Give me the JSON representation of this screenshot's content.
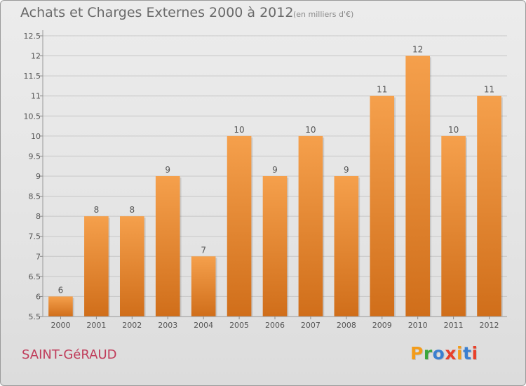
{
  "header": {
    "title": "Achats et Charges Externes 2000 à 2012",
    "subtitle": "(en milliers d'€)"
  },
  "footer": {
    "location": "SAINT-GéRAUD",
    "brand": "Proxiti",
    "brand_colors": [
      "#f39c1a",
      "#3aa63d",
      "#3a7fd0",
      "#e8402a",
      "#f39c1a",
      "#3a7fd0",
      "#e8402a"
    ]
  },
  "chart_data": {
    "type": "bar",
    "categories": [
      "2000",
      "2001",
      "2002",
      "2003",
      "2004",
      "2005",
      "2006",
      "2007",
      "2008",
      "2009",
      "2010",
      "2011",
      "2012"
    ],
    "values": [
      6,
      8,
      8,
      9,
      7,
      10,
      9,
      10,
      9,
      11,
      12,
      10,
      11
    ],
    "data_labels": [
      "6",
      "8",
      "8",
      "9",
      "7",
      "10",
      "9",
      "10",
      "9",
      "11",
      "12",
      "10",
      "11"
    ],
    "ylim": [
      5.5,
      12.5
    ],
    "yticks": [
      5.5,
      6,
      6.5,
      7,
      7.5,
      8,
      8.5,
      9,
      9.5,
      10,
      10.5,
      11,
      11.5,
      12,
      12.5
    ],
    "ytick_labels": [
      "5.5",
      "6",
      "6.5",
      "7",
      "7.5",
      "8",
      "8.5",
      "9",
      "9.5",
      "10",
      "10.5",
      "11",
      "11.5",
      "12",
      "12.5"
    ],
    "grid": true,
    "bar_color_top": "#f5a04c",
    "bar_color_bottom": "#d06e1a"
  }
}
